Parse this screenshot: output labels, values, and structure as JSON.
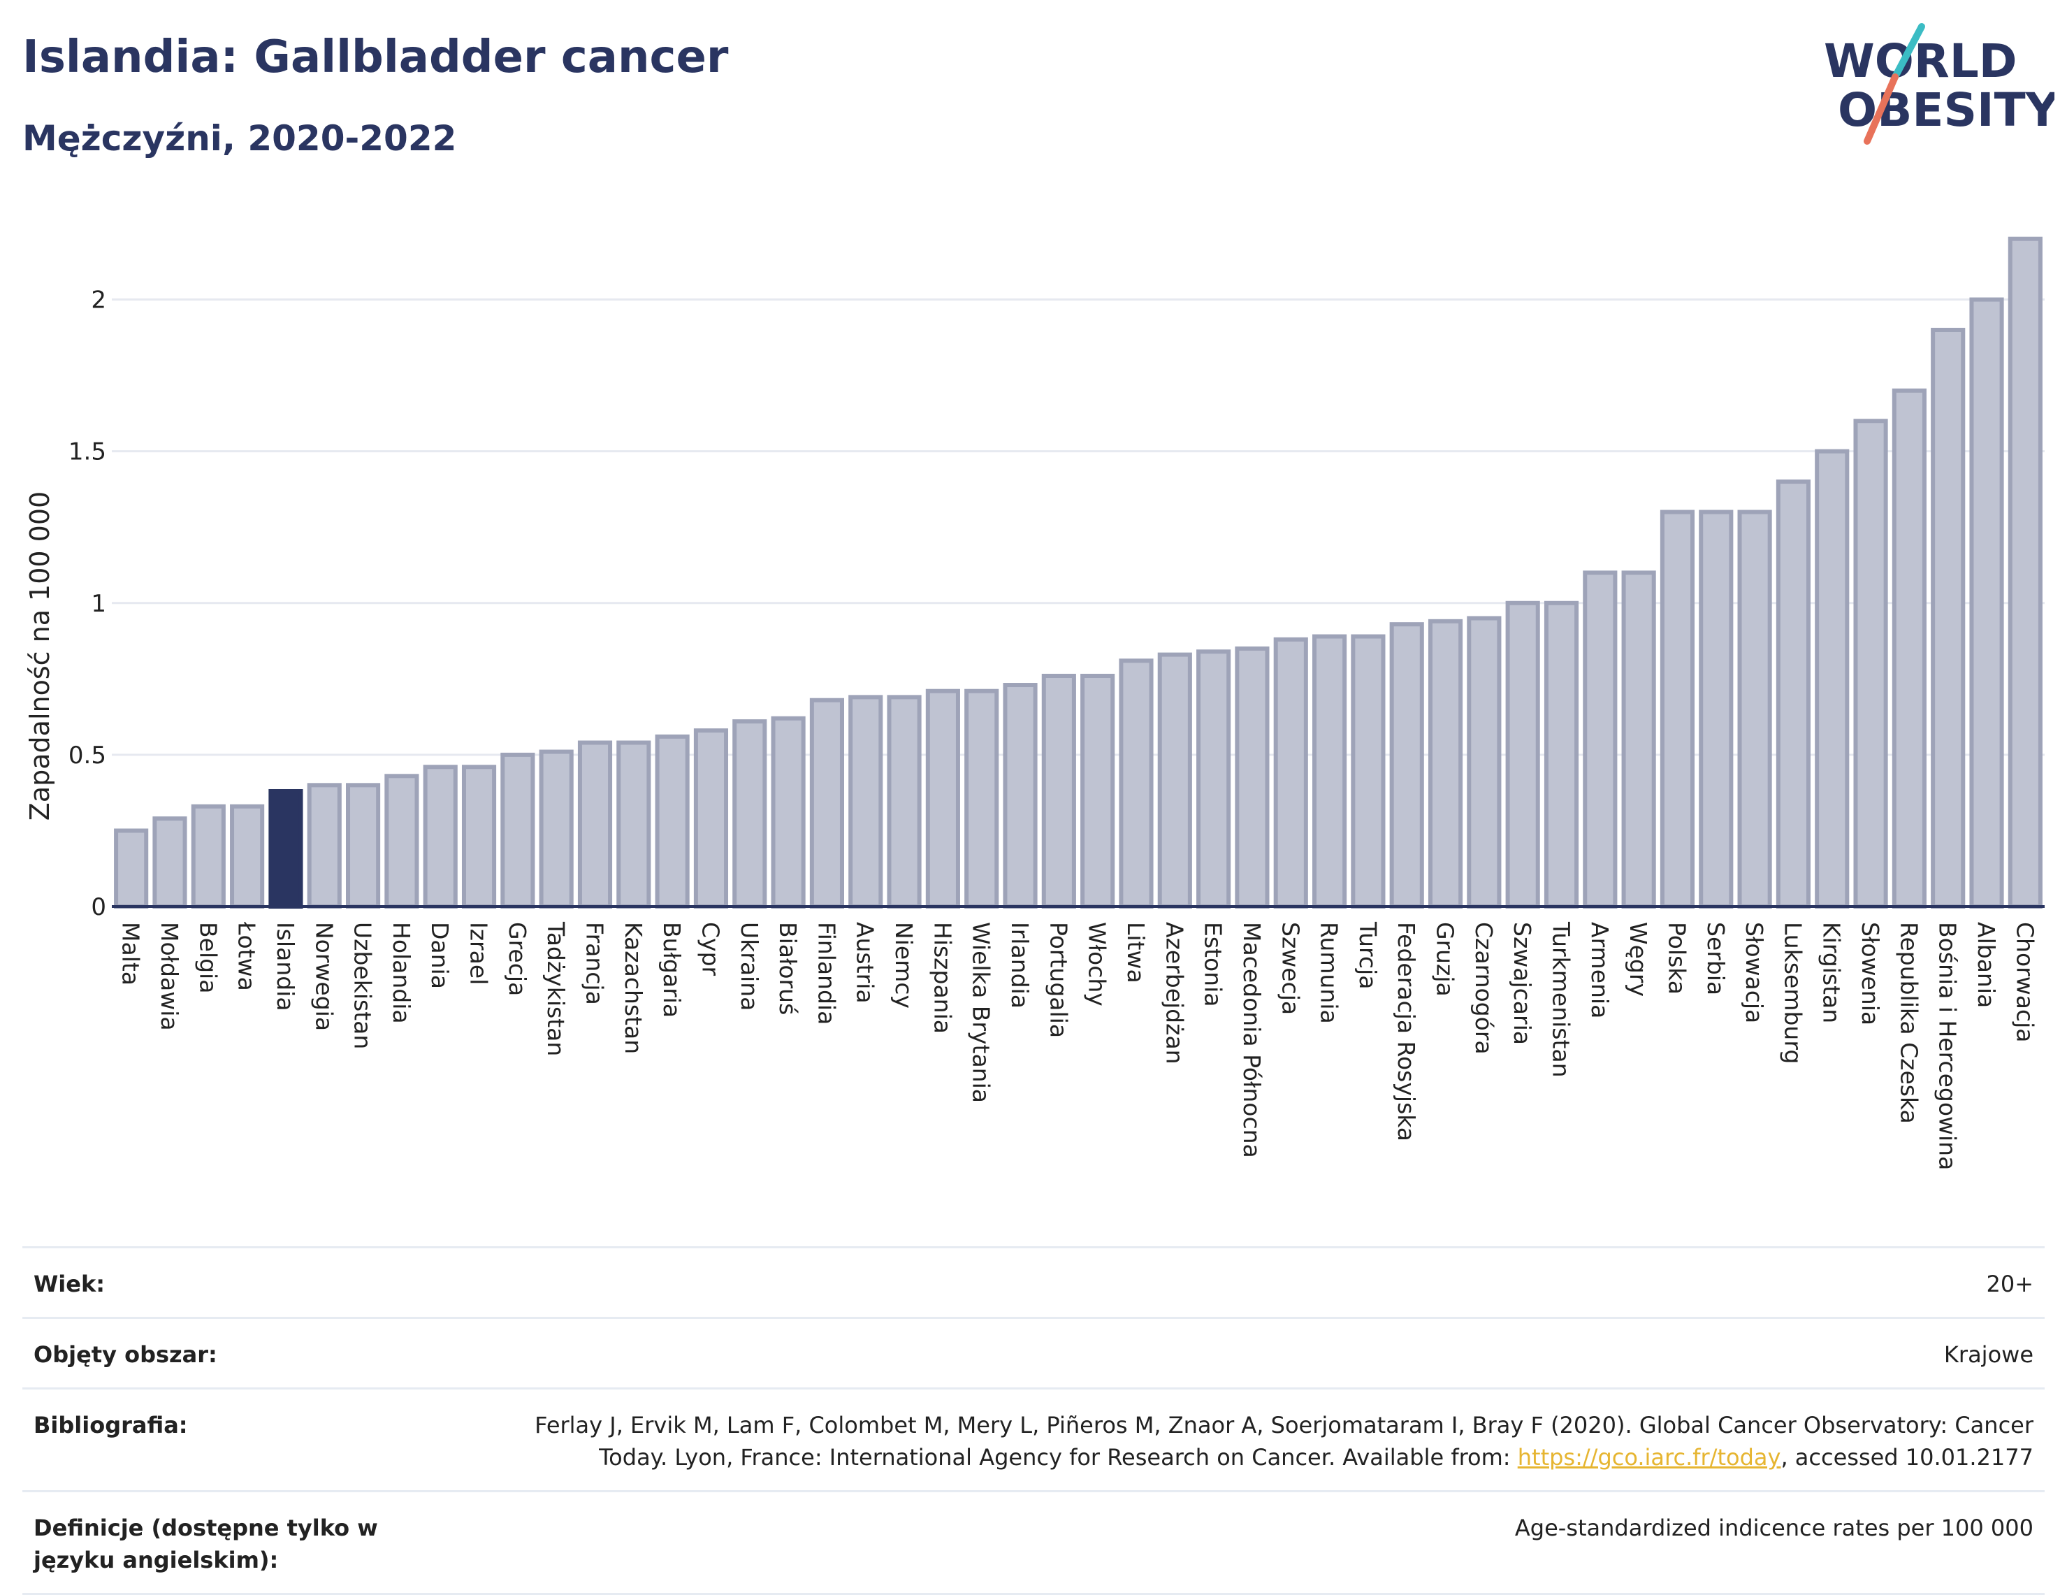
{
  "header": {
    "title": "Islandia: Gallbladder cancer",
    "subtitle": "Mężczyźni, 2020-2022"
  },
  "logo": {
    "line1": "WORLD",
    "line2": "OBESITY",
    "colors": {
      "text": "#2a3561",
      "slash_teal": "#3bbcc4",
      "slash_coral": "#e8725a"
    }
  },
  "colors": {
    "bar_fill": "#bfc3d2",
    "bar_stroke": "#9ea3b8",
    "highlight": "#2a3561",
    "axis": "#2a3561",
    "grid": "#e6e9f0"
  },
  "chart_data": {
    "type": "bar",
    "title": "Islandia: Gallbladder cancer",
    "subtitle": "Mężczyźni, 2020-2022",
    "xlabel": "",
    "ylabel": "Zapadalność na 100 000",
    "ylim": [
      0,
      2.25
    ],
    "yticks": [
      0,
      0.5,
      1,
      1.5,
      2
    ],
    "ytick_labels": [
      "0",
      "0.5",
      "1",
      "1.5",
      "2"
    ],
    "grid": true,
    "highlight": "Islandia",
    "categories": [
      "Malta",
      "Mołdawia",
      "Belgia",
      "Łotwa",
      "Islandia",
      "Norwegia",
      "Uzbekistan",
      "Holandia",
      "Dania",
      "Izrael",
      "Grecja",
      "Tadżykistan",
      "Francja",
      "Kazachstan",
      "Bułgaria",
      "Cypr",
      "Ukraina",
      "Białoruś",
      "Finlandia",
      "Austria",
      "Niemcy",
      "Hiszpania",
      "Wielka Brytania",
      "Irlandia",
      "Portugalia",
      "Włochy",
      "Litwa",
      "Azerbejdżan",
      "Estonia",
      "Macedonia Północna",
      "Szwecja",
      "Rumunia",
      "Turcja",
      "Federacja Rosyjska",
      "Gruzja",
      "Czarnogóra",
      "Szwajcaria",
      "Turkmenistan",
      "Armenia",
      "Węgry",
      "Polska",
      "Serbia",
      "Słowacja",
      "Luksemburg",
      "Kirgistan",
      "Słowenia",
      "Republika Czeska",
      "Bośnia i Hercegowina",
      "Albania",
      "Chorwacja"
    ],
    "values": [
      0.25,
      0.29,
      0.33,
      0.33,
      0.38,
      0.4,
      0.4,
      0.43,
      0.46,
      0.46,
      0.5,
      0.51,
      0.54,
      0.54,
      0.56,
      0.58,
      0.61,
      0.62,
      0.68,
      0.69,
      0.69,
      0.71,
      0.71,
      0.73,
      0.76,
      0.76,
      0.81,
      0.83,
      0.84,
      0.85,
      0.88,
      0.89,
      0.89,
      0.93,
      0.94,
      0.95,
      1.0,
      1.0,
      1.1,
      1.1,
      1.3,
      1.3,
      1.3,
      1.4,
      1.5,
      1.6,
      1.7,
      1.9,
      2.0,
      2.2
    ]
  },
  "info": {
    "age_label": "Wiek:",
    "age_value": "20+",
    "coverage_label": "Objęty obszar:",
    "coverage_value": "Krajowe",
    "bibliography_label": "Bibliografia:",
    "bibliography_line1": "Ferlay J, Ervik M, Lam F, Colombet M, Mery L, Piñeros M, Znaor A, Soerjomataram I, Bray F (2020). Global Cancer Observatory: Cancer",
    "bibliography_line2_pre": "Today. Lyon, France: International Agency for Research on Cancer. Available from: ",
    "bibliography_link": "https://gco.iarc.fr/today",
    "bibliography_line2_post": ", accessed 10.01.2177",
    "definitions_label": "Definicje (dostępne tylko w języku angielskim):",
    "definitions_value": "Age-standardized indicence rates per 100 000"
  }
}
